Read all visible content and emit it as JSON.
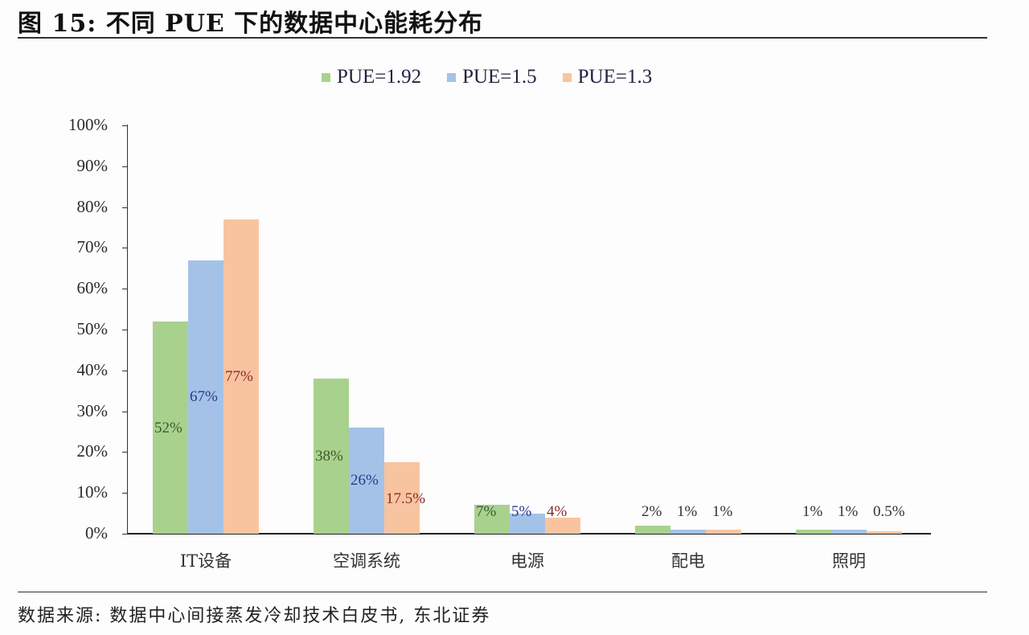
{
  "header": {
    "title": "图 15: 不同 PUE 下的数据中心能耗分布"
  },
  "footer": {
    "source": "数据来源: 数据中心间接蒸发冷却技术白皮书, 东北证券"
  },
  "legend": [
    {
      "label": "PUE=1.92",
      "color": "#a9d18e"
    },
    {
      "label": "PUE=1.5",
      "color": "#a4c2e8"
    },
    {
      "label": "PUE=1.3",
      "color": "#f8c4a0"
    }
  ],
  "yaxis": {
    "ticks": [
      "100%",
      "90%",
      "80%",
      "70%",
      "60%",
      "50%",
      "40%",
      "30%",
      "20%",
      "10%",
      "0%"
    ]
  },
  "chart_data": {
    "type": "bar",
    "title": "不同 PUE 下的数据中心能耗分布",
    "xlabel": "",
    "ylabel": "",
    "ylim": [
      0,
      100
    ],
    "grid": false,
    "legend_position": "top",
    "categories": [
      "IT设备",
      "空调系统",
      "电源",
      "配电",
      "照明"
    ],
    "series": [
      {
        "name": "PUE=1.92",
        "values": [
          52,
          38,
          7,
          2,
          1
        ],
        "labels": [
          "52%",
          "38%",
          "7%",
          "2%",
          "1%"
        ]
      },
      {
        "name": "PUE=1.5",
        "values": [
          67,
          26,
          5,
          1,
          1
        ],
        "labels": [
          "67%",
          "26%",
          "5%",
          "1%",
          "1%"
        ]
      },
      {
        "name": "PUE=1.3",
        "values": [
          77,
          17.5,
          4,
          1,
          0.5
        ],
        "labels": [
          "77%",
          "17.5%",
          "4%",
          "1%",
          "0.5%"
        ]
      }
    ]
  }
}
